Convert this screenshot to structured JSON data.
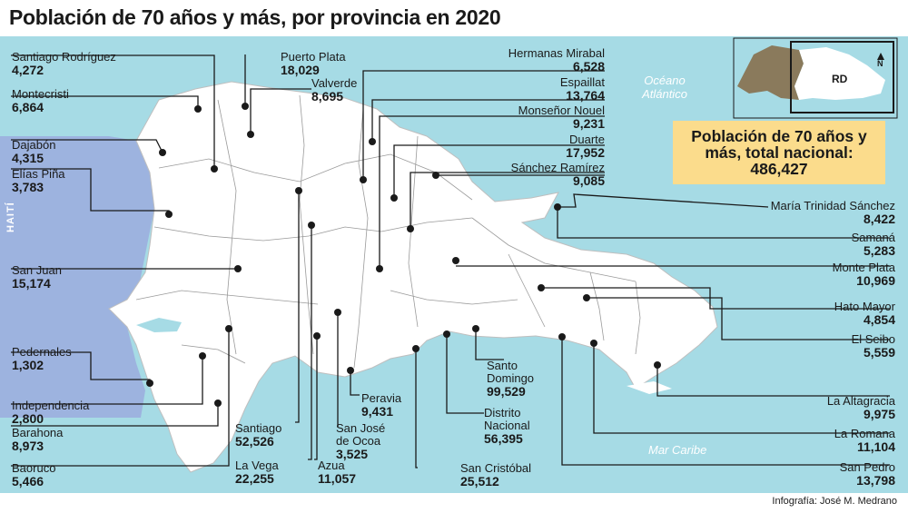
{
  "title": "Población de 70 años y más, por provincia en 2020",
  "colors": {
    "sea": "#a6dbe5",
    "haiti": "#9db3df",
    "land": "#ffffff",
    "borders": "#8a8a8a",
    "highlight": "#fbdc8c",
    "inset_land_other": "#8a7a5c"
  },
  "geography": {
    "haiti": "HAITÍ",
    "ocean_north": "Océano Atlántico",
    "sea_south": "Mar Caribe"
  },
  "inset": {
    "country_label": "RD",
    "north_label": "N"
  },
  "total": {
    "label": "Población de 70 años y más, total nacional:",
    "value": "486,427"
  },
  "provinces": [
    {
      "name": "Santiago Rodríguez",
      "value": "4,272"
    },
    {
      "name": "Montecristi",
      "value": "6,864"
    },
    {
      "name": "Dajabón",
      "value": "4,315"
    },
    {
      "name": "Elías Piña",
      "value": "3,783"
    },
    {
      "name": "San Juan",
      "value": "15,174"
    },
    {
      "name": "Pedernales",
      "value": "1,302"
    },
    {
      "name": "Independencia",
      "value": "2,800"
    },
    {
      "name": "Barahona",
      "value": "8,973"
    },
    {
      "name": "Baoruco",
      "value": "5,466"
    },
    {
      "name": "Puerto Plata",
      "value": "18,029"
    },
    {
      "name": "Valverde",
      "value": "8,695"
    },
    {
      "name": "Santiago",
      "value": "52,526"
    },
    {
      "name": "La Vega",
      "value": "22,255"
    },
    {
      "name": "Azua",
      "value": "11,057"
    },
    {
      "name": "San José de Ocoa",
      "value": "3,525"
    },
    {
      "name": "Peravia",
      "value": "9,431"
    },
    {
      "name": "Santo Domingo",
      "value": "99,529"
    },
    {
      "name": "Distrito Nacional",
      "value": "56,395"
    },
    {
      "name": "San Cristóbal",
      "value": "25,512"
    },
    {
      "name": "Hermanas Mirabal",
      "value": "6,528"
    },
    {
      "name": "Espaillat",
      "value": "13,764"
    },
    {
      "name": "Monseñor Nouel",
      "value": "9,231"
    },
    {
      "name": "Duarte",
      "value": "17,952"
    },
    {
      "name": "Sánchez Ramírez",
      "value": "9,085"
    },
    {
      "name": "María Trinidad Sánchez",
      "value": "8,422"
    },
    {
      "name": "Samaná",
      "value": "5,283"
    },
    {
      "name": "Monte Plata",
      "value": "10,969"
    },
    {
      "name": "Hato Mayor",
      "value": "4,854"
    },
    {
      "name": "El Seibo",
      "value": "5,559"
    },
    {
      "name": "La Altagracia",
      "value": "9,975"
    },
    {
      "name": "La Romana",
      "value": "11,104"
    },
    {
      "name": "San Pedro",
      "value": "13,798"
    }
  ],
  "credit": "Infografía: José M. Medrano"
}
